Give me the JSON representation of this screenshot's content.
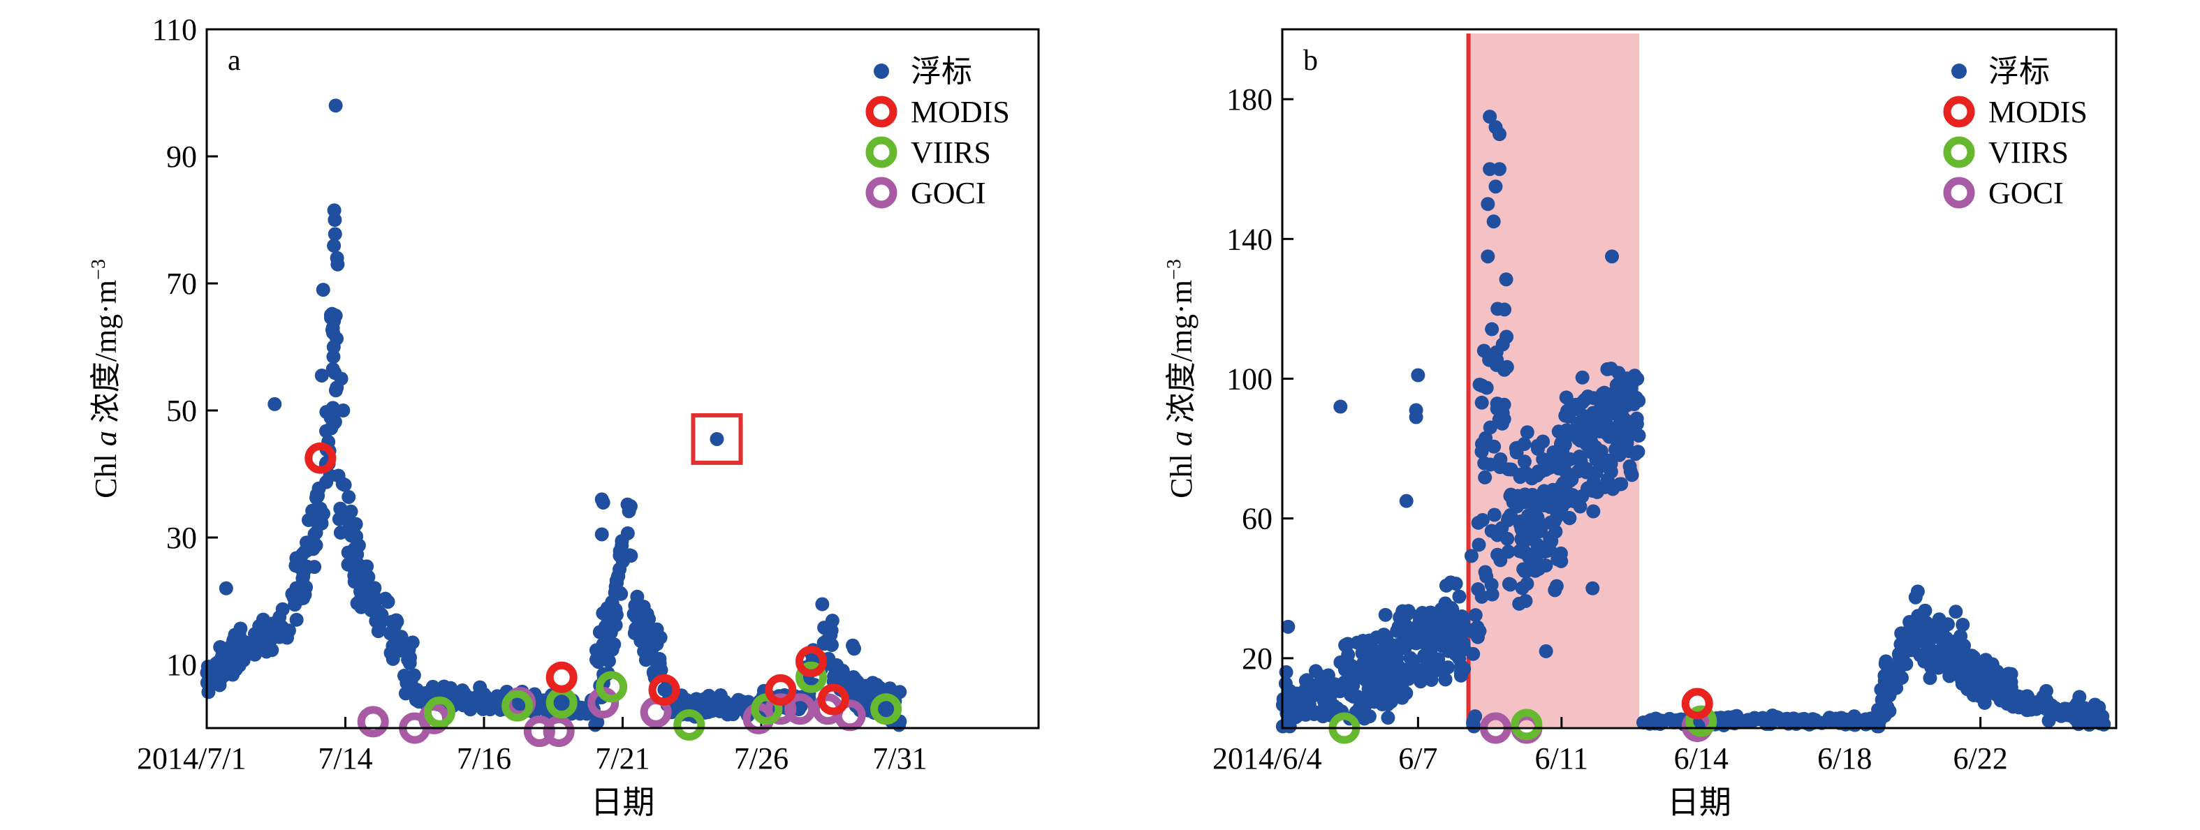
{
  "figure": {
    "background": "#ffffff",
    "axis_color": "#000000"
  },
  "legend_symbols": {
    "buoy": "filled-dot",
    "MODIS": "ring",
    "VIIRS": "ring",
    "GOCI": "ring"
  },
  "colors": {
    "buoy": "#1f4f9e",
    "MODIS": "#e8221f",
    "VIIRS": "#66b82e",
    "GOCI": "#a95aa5",
    "highlight_box": "#e0302f",
    "shade": "#f4c2c4",
    "redline": "#e0302f"
  },
  "chart_data": [
    {
      "type": "scatter",
      "panel_label": "a",
      "xlabel": "日期",
      "ylabel_prefix": "Chl ",
      "ylabel_italic": "a",
      "ylabel_suffix": " 浓度/mg·m",
      "ylabel_exp": "−3",
      "ylim": [
        0,
        110
      ],
      "yticks": [
        10,
        30,
        50,
        70,
        90,
        110
      ],
      "xlim": [
        0,
        30
      ],
      "xticks": [
        {
          "x": 0,
          "label": "2014/7/1"
        },
        {
          "x": 5,
          "label": "7/14"
        },
        {
          "x": 10,
          "label": "7/16"
        },
        {
          "x": 15,
          "label": "7/21"
        },
        {
          "x": 20,
          "label": "7/26"
        },
        {
          "x": 25,
          "label": "7/31"
        }
      ],
      "legend": [
        "浮标",
        "MODIS",
        "VIIRS",
        "GOCI"
      ],
      "legend_position": "top-right",
      "grid": false,
      "buoy_segments": [
        {
          "x0": 0.0,
          "x1": 3.0,
          "n": 70,
          "v0": 8,
          "v1": 17,
          "spread": 4
        },
        {
          "x0": 3.0,
          "x1": 4.3,
          "n": 40,
          "v0": 17,
          "v1": 38,
          "spread": 8
        },
        {
          "x0": 4.3,
          "x1": 4.7,
          "n": 30,
          "v0": 35,
          "v1": 70,
          "spread": 20
        },
        {
          "x0": 4.7,
          "x1": 5.6,
          "n": 40,
          "v0": 38,
          "v1": 22,
          "spread": 8
        },
        {
          "x0": 5.6,
          "x1": 7.5,
          "n": 55,
          "v0": 24,
          "v1": 7,
          "spread": 6
        },
        {
          "x0": 7.5,
          "x1": 14.0,
          "n": 150,
          "v0": 5,
          "v1": 3,
          "spread": 2
        },
        {
          "x0": 14.0,
          "x1": 15.3,
          "n": 55,
          "v0": 5,
          "v1": 30,
          "spread": 9
        },
        {
          "x0": 15.3,
          "x1": 16.8,
          "n": 45,
          "v0": 20,
          "v1": 4,
          "spread": 6
        },
        {
          "x0": 16.8,
          "x1": 21.5,
          "n": 110,
          "v0": 3,
          "v1": 4,
          "spread": 2
        },
        {
          "x0": 21.5,
          "x1": 22.6,
          "n": 35,
          "v0": 5,
          "v1": 16,
          "spread": 6
        },
        {
          "x0": 22.6,
          "x1": 24.0,
          "n": 40,
          "v0": 8,
          "v1": 3,
          "spread": 3
        },
        {
          "x0": 24.0,
          "x1": 25.0,
          "n": 25,
          "v0": 5,
          "v1": 3,
          "spread": 4
        }
      ],
      "buoy_points": [
        {
          "x": 4.65,
          "y": 98
        },
        {
          "x": 4.6,
          "y": 81.5
        },
        {
          "x": 4.62,
          "y": 80
        },
        {
          "x": 4.7,
          "y": 74
        },
        {
          "x": 4.72,
          "y": 73
        },
        {
          "x": 4.55,
          "y": 63
        },
        {
          "x": 4.2,
          "y": 69
        },
        {
          "x": 4.58,
          "y": 60
        },
        {
          "x": 4.15,
          "y": 55.5
        },
        {
          "x": 4.55,
          "y": 56.5
        },
        {
          "x": 4.85,
          "y": 55
        },
        {
          "x": 4.92,
          "y": 50
        },
        {
          "x": 4.6,
          "y": 49.5
        },
        {
          "x": 2.45,
          "y": 51
        },
        {
          "x": 14.25,
          "y": 36
        },
        {
          "x": 14.3,
          "y": 35.5
        },
        {
          "x": 14.25,
          "y": 30.5
        },
        {
          "x": 0.7,
          "y": 22
        },
        {
          "x": 22.2,
          "y": 19.5
        },
        {
          "x": 18.4,
          "y": 45.5
        },
        {
          "x": 23.3,
          "y": 13
        },
        {
          "x": 23.35,
          "y": 12.5
        }
      ],
      "MODIS": [
        {
          "x": 4.1,
          "y": 42.5
        },
        {
          "x": 12.8,
          "y": 8
        },
        {
          "x": 16.5,
          "y": 6
        },
        {
          "x": 20.7,
          "y": 6
        },
        {
          "x": 21.8,
          "y": 10.5
        },
        {
          "x": 22.6,
          "y": 4.5
        }
      ],
      "VIIRS": [
        {
          "x": 8.4,
          "y": 2.5
        },
        {
          "x": 11.2,
          "y": 3.5
        },
        {
          "x": 12.8,
          "y": 4
        },
        {
          "x": 14.6,
          "y": 6.5
        },
        {
          "x": 17.4,
          "y": 0.5
        },
        {
          "x": 20.2,
          "y": 3
        },
        {
          "x": 21.8,
          "y": 8
        },
        {
          "x": 24.5,
          "y": 3
        }
      ],
      "GOCI": [
        {
          "x": 6.0,
          "y": 1
        },
        {
          "x": 7.5,
          "y": 0
        },
        {
          "x": 8.2,
          "y": 1.5
        },
        {
          "x": 11.3,
          "y": 4
        },
        {
          "x": 12.0,
          "y": -0.5
        },
        {
          "x": 12.7,
          "y": -0.5
        },
        {
          "x": 14.3,
          "y": 4
        },
        {
          "x": 16.2,
          "y": 2.5
        },
        {
          "x": 19.9,
          "y": 1.5
        },
        {
          "x": 20.7,
          "y": 3
        },
        {
          "x": 21.4,
          "y": 3
        },
        {
          "x": 22.4,
          "y": 3
        },
        {
          "x": 23.2,
          "y": 2
        }
      ],
      "highlight_box": {
        "x": 18.4,
        "y": 45.5
      }
    },
    {
      "type": "scatter",
      "panel_label": "b",
      "xlabel": "日期",
      "ylabel_prefix": "Chl ",
      "ylabel_italic": "a",
      "ylabel_suffix": " 浓度/mg·m",
      "ylabel_exp": "−3",
      "ylim": [
        0,
        200
      ],
      "yticks": [
        20,
        60,
        100,
        140,
        180
      ],
      "xlim": [
        0,
        21.5
      ],
      "xticks": [
        {
          "x": 0,
          "label": "2014/6/4"
        },
        {
          "x": 3.5,
          "label": "6/7"
        },
        {
          "x": 7.2,
          "label": "6/11"
        },
        {
          "x": 10.8,
          "label": "6/14"
        },
        {
          "x": 14.5,
          "label": "6/18"
        },
        {
          "x": 18.0,
          "label": "6/22"
        }
      ],
      "legend": [
        "浮标",
        "MODIS",
        "VIIRS",
        "GOCI"
      ],
      "legend_position": "top-right",
      "grid": false,
      "shaded_region": [
        4.8,
        9.2
      ],
      "red_line_x": 4.8,
      "buoy_segments": [
        {
          "x0": 0.0,
          "x1": 1.5,
          "n": 80,
          "v0": 5,
          "v1": 10,
          "spread": 8
        },
        {
          "x0": 1.5,
          "x1": 4.7,
          "n": 240,
          "v0": 10,
          "v1": 28,
          "spread": 16
        },
        {
          "x0": 4.8,
          "x1": 5.8,
          "n": 60,
          "v0": 30,
          "v1": 100,
          "spread": 60
        },
        {
          "x0": 5.8,
          "x1": 7.2,
          "n": 110,
          "v0": 55,
          "v1": 65,
          "spread": 28
        },
        {
          "x0": 7.2,
          "x1": 9.2,
          "n": 180,
          "v0": 75,
          "v1": 88,
          "spread": 22
        },
        {
          "x0": 9.3,
          "x1": 15.3,
          "n": 160,
          "v0": 2,
          "v1": 2,
          "spread": 1.5
        },
        {
          "x0": 15.3,
          "x1": 16.4,
          "n": 60,
          "v0": 4,
          "v1": 30,
          "spread": 10
        },
        {
          "x0": 16.4,
          "x1": 17.6,
          "n": 70,
          "v0": 25,
          "v1": 20,
          "spread": 12
        },
        {
          "x0": 17.6,
          "x1": 18.8,
          "n": 60,
          "v0": 15,
          "v1": 10,
          "spread": 8
        },
        {
          "x0": 18.8,
          "x1": 21.2,
          "n": 70,
          "v0": 8,
          "v1": 3,
          "spread": 5
        }
      ],
      "buoy_points": [
        {
          "x": 5.35,
          "y": 175
        },
        {
          "x": 5.5,
          "y": 172
        },
        {
          "x": 5.6,
          "y": 170
        },
        {
          "x": 5.35,
          "y": 160
        },
        {
          "x": 5.6,
          "y": 160
        },
        {
          "x": 5.5,
          "y": 155
        },
        {
          "x": 5.3,
          "y": 150
        },
        {
          "x": 5.45,
          "y": 145
        },
        {
          "x": 5.3,
          "y": 135
        },
        {
          "x": 5.55,
          "y": 120
        },
        {
          "x": 8.5,
          "y": 135
        },
        {
          "x": 1.5,
          "y": 92
        },
        {
          "x": 3.5,
          "y": 101
        },
        {
          "x": 3.45,
          "y": 91
        },
        {
          "x": 3.45,
          "y": 89
        },
        {
          "x": 3.2,
          "y": 65
        },
        {
          "x": 8.0,
          "y": 40
        },
        {
          "x": 6.8,
          "y": 22
        },
        {
          "x": 5.15,
          "y": 98
        },
        {
          "x": 5.2,
          "y": 108
        },
        {
          "x": 0.15,
          "y": 29
        },
        {
          "x": 0.1,
          "y": 16
        }
      ],
      "MODIS": [
        {
          "x": 10.7,
          "y": 7
        }
      ],
      "VIIRS": [
        {
          "x": 1.6,
          "y": 0
        },
        {
          "x": 6.3,
          "y": 1
        },
        {
          "x": 10.8,
          "y": 2
        }
      ],
      "GOCI": [
        {
          "x": 5.5,
          "y": 0
        },
        {
          "x": 6.3,
          "y": 0
        },
        {
          "x": 10.7,
          "y": 0.5
        }
      ]
    }
  ]
}
